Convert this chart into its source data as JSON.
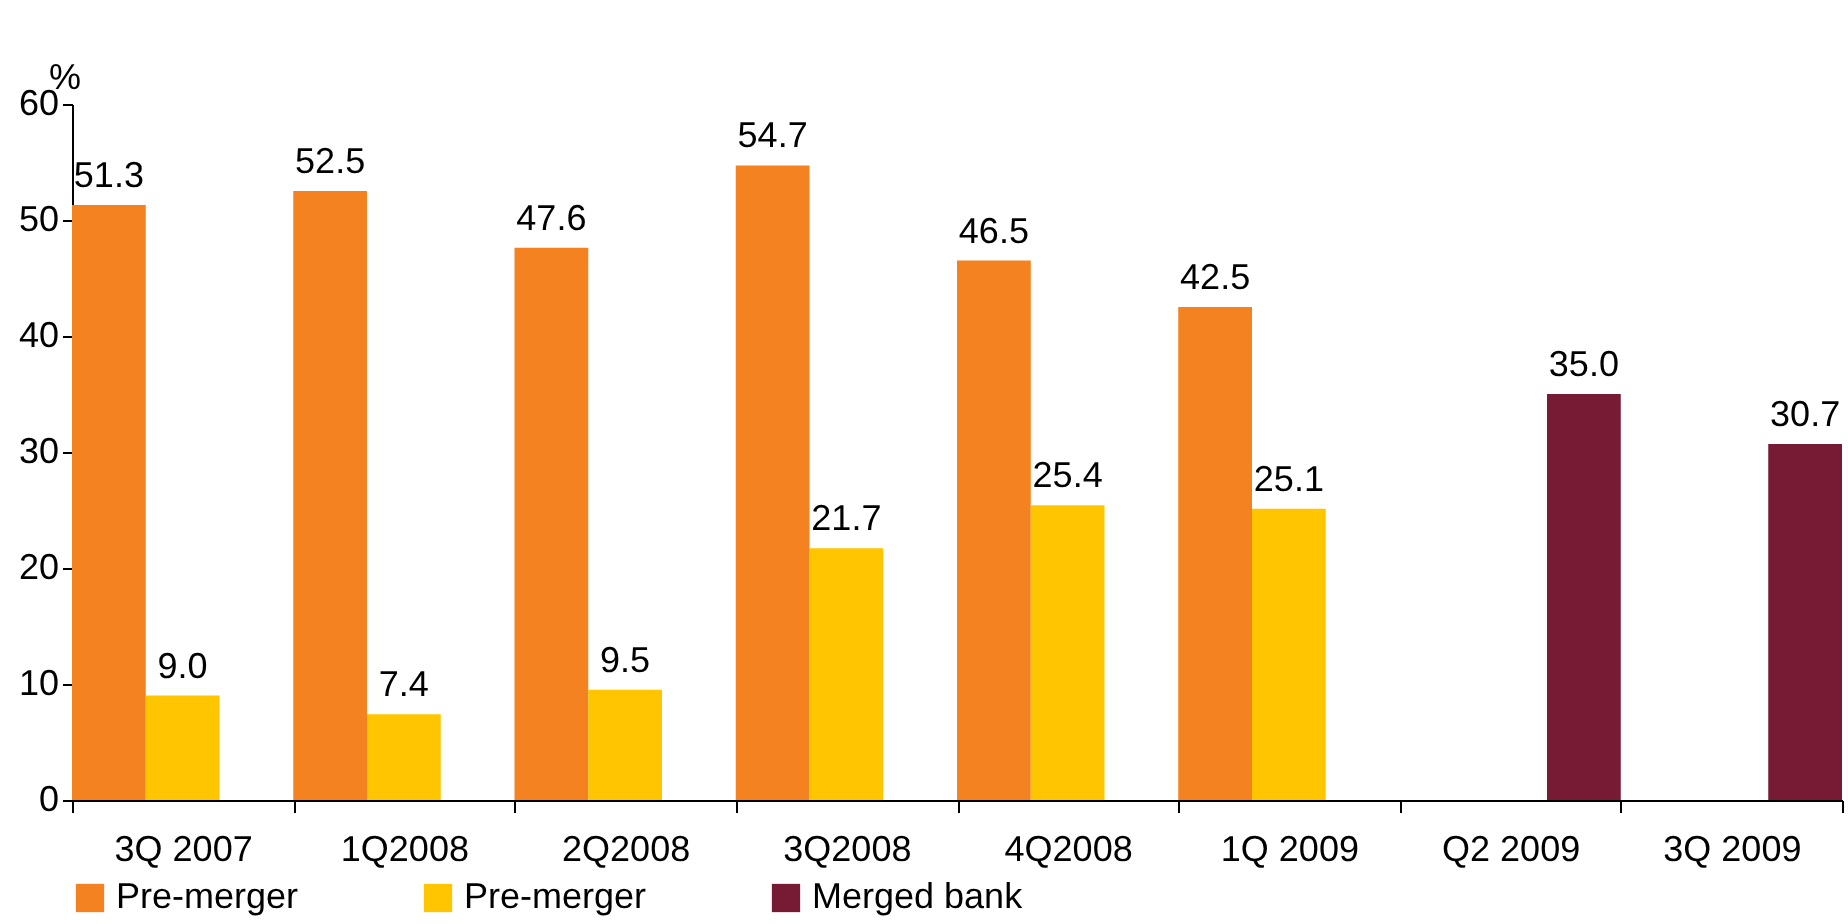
{
  "chart_data": {
    "type": "bar",
    "ylabel": "%",
    "categories": [
      "3Q 2007",
      "1Q2008",
      "2Q2008",
      "3Q2008",
      "4Q2008",
      "1Q 2009",
      "Q2 2009",
      "3Q 2009"
    ],
    "series": [
      {
        "name": "Pre-merger",
        "color": "#f58220",
        "values": [
          51.3,
          52.5,
          47.6,
          54.7,
          46.5,
          42.5,
          null,
          null
        ],
        "value_labels": [
          "51.3",
          "52.5",
          "47.6",
          "54.7",
          "46.5",
          "42.5",
          null,
          null
        ]
      },
      {
        "name": "Pre-merger",
        "color": "#ffc600",
        "values": [
          9.0,
          7.4,
          9.5,
          21.7,
          25.4,
          25.1,
          null,
          null
        ],
        "value_labels": [
          "9.0",
          "7.4",
          "9.5",
          "21.7",
          "25.4",
          "25.1",
          null,
          null
        ]
      },
      {
        "name": "Merged bank",
        "color": "#761b33",
        "values": [
          null,
          null,
          null,
          null,
          null,
          null,
          35.0,
          30.7
        ],
        "value_labels": [
          null,
          null,
          null,
          null,
          null,
          null,
          "35.0",
          "30.7"
        ]
      }
    ],
    "ylim": [
      0,
      60
    ],
    "yticks": [
      0,
      10,
      20,
      30,
      40,
      50,
      60
    ],
    "grid": false,
    "legend": "bottom"
  }
}
